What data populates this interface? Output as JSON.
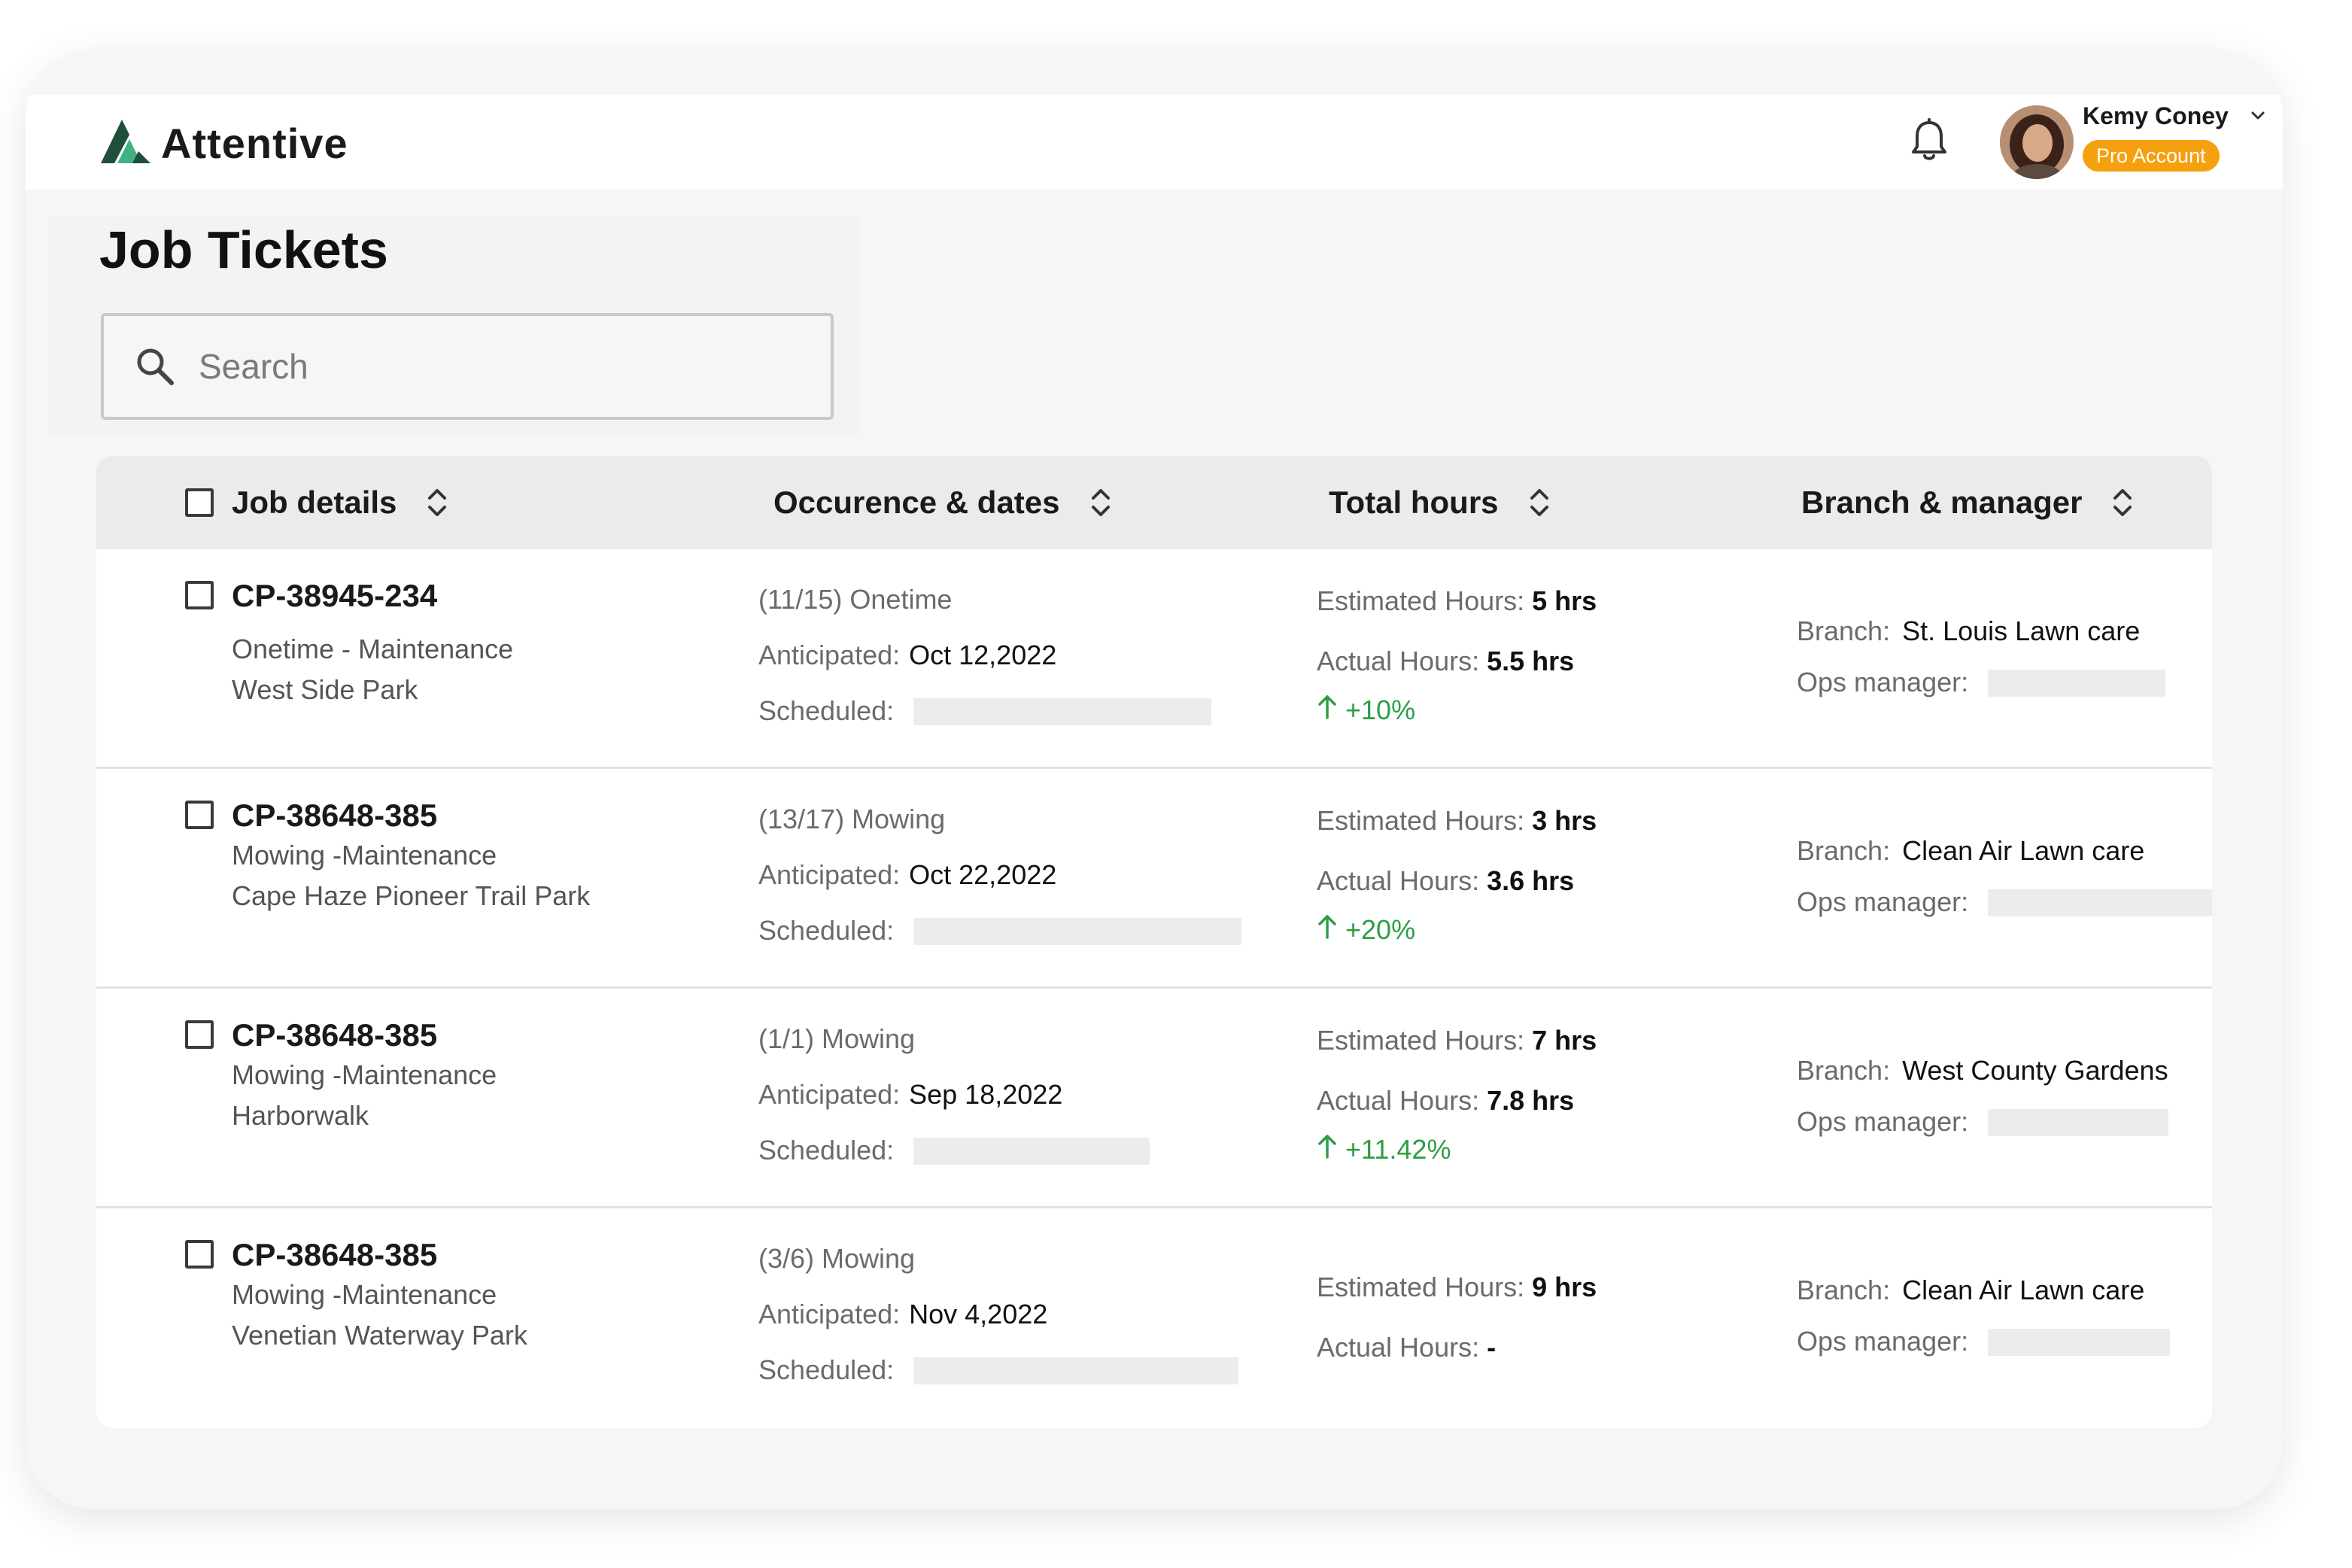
{
  "app": {
    "name": "Attentive"
  },
  "user": {
    "name": "Kemy Coney",
    "badge": "Pro Account"
  },
  "page": {
    "title": "Job Tickets"
  },
  "search": {
    "placeholder": "Search"
  },
  "columns": [
    {
      "label": "Job details"
    },
    {
      "label": "Occurence & dates"
    },
    {
      "label": "Total hours"
    },
    {
      "label": "Branch & manager"
    }
  ],
  "labels": {
    "anticipated": "Anticipated:",
    "scheduled": "Scheduled:",
    "estimated": "Estimated Hours:",
    "actual": "Actual Hours:",
    "branch": "Branch:",
    "ops_manager": "Ops manager:"
  },
  "rows": [
    {
      "id": "CP-38945-234",
      "type": "Onetime - Maintenance",
      "location": "West Side Park",
      "occurrence": "(11/15) Onetime",
      "anticipated": "Oct 12,2022",
      "estimated": "5 hrs",
      "actual": "5.5 hrs",
      "delta": "+10%",
      "branch": "St. Louis Lawn care"
    },
    {
      "id": "CP-38648-385",
      "type": "Mowing -Maintenance",
      "location": "Cape Haze Pioneer Trail Park",
      "occurrence": "(13/17) Mowing",
      "anticipated": "Oct 22,2022",
      "estimated": "3 hrs",
      "actual": "3.6 hrs",
      "delta": "+20%",
      "branch": "Clean Air Lawn care"
    },
    {
      "id": "CP-38648-385",
      "type": "Mowing -Maintenance",
      "location": "Harborwalk",
      "occurrence": "(1/1) Mowing",
      "anticipated": "Sep 18,2022",
      "estimated": "7 hrs",
      "actual": "7.8 hrs",
      "delta": "+11.42%",
      "branch": "West County Gardens"
    },
    {
      "id": "CP-38648-385",
      "type": "Mowing -Maintenance",
      "location": "Venetian Waterway Park",
      "occurrence": "(3/6) Mowing",
      "anticipated": "Nov 4,2022",
      "estimated": "9 hrs",
      "actual": "-",
      "branch": "Clean Air Lawn care"
    }
  ],
  "colors": {
    "accent": "#f5a00e",
    "positive": "#2e9e46",
    "logo_dark": "#1f4f3a",
    "logo_light": "#3fb27f"
  },
  "icons": [
    "attentive-logo-icon",
    "bell-icon",
    "chevron-down-icon",
    "search-icon",
    "sort-icon",
    "arrow-up-icon",
    "checkbox-icon"
  ]
}
